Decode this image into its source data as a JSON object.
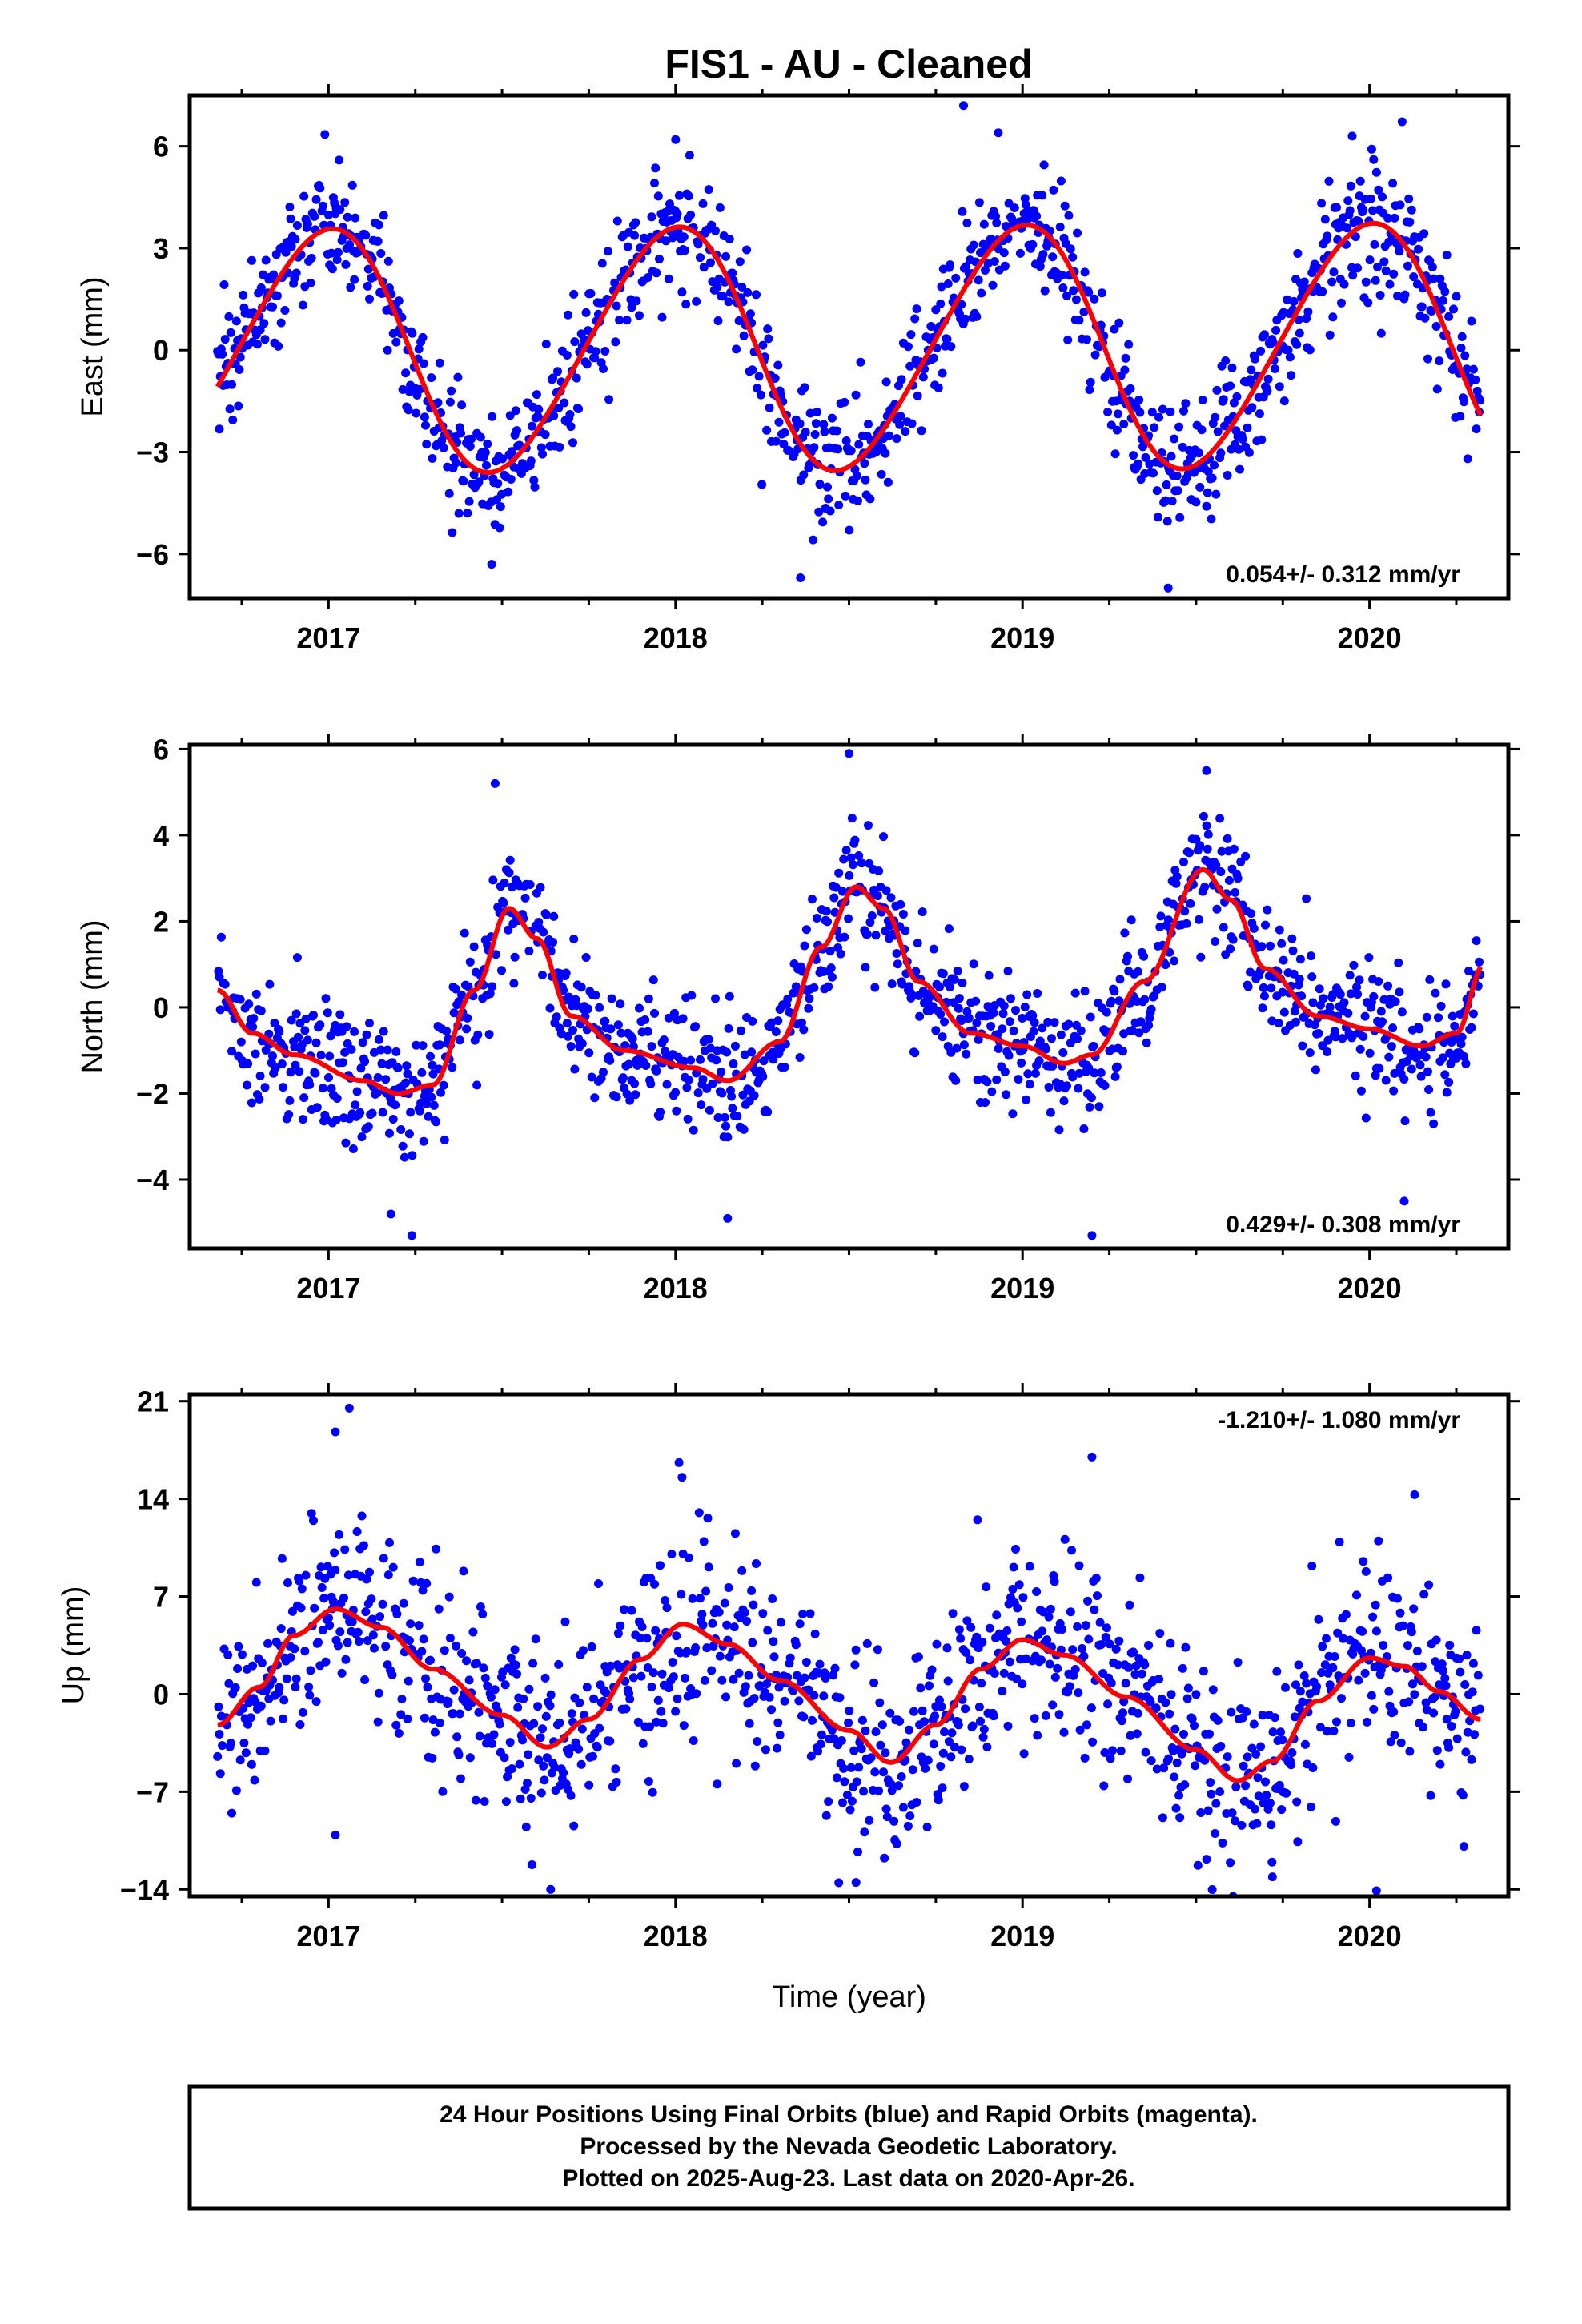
{
  "title": "FIS1  - AU - Cleaned",
  "colors": {
    "points_final": "#0000ff",
    "fit_line": "#ff0000",
    "frame": "#000000",
    "background": "#ffffff"
  },
  "footer": {
    "line1": "24 Hour Positions Using Final Orbits (blue) and Rapid Orbits (magenta).",
    "line2": "Processed by the Nevada Geodetic Laboratory.",
    "line3": "Plotted on 2025-Aug-23. Last data on 2020-Apr-26."
  },
  "chart_data": [
    {
      "type": "scatter",
      "panel": "east",
      "ylabel": "East (mm)",
      "xlabel": "",
      "xlim": [
        2016.6,
        2020.4
      ],
      "ylim": [
        -7.3,
        7.5
      ],
      "xticks": [
        2017,
        2018,
        2019,
        2020
      ],
      "yticks": [
        -6,
        -3,
        0,
        3,
        6
      ],
      "ytick_labels": [
        "−6",
        "−3",
        "0",
        "3",
        "6"
      ],
      "rate_text": "0.054+/- 0.312 mm/yr",
      "rate_position": "bottom-right",
      "fit_model": {
        "offset": -0.05,
        "trend_mm_per_yr": 0.054,
        "annual_amp": 3.55,
        "annual_peak_doy": 360,
        "semiannual_amp": 0.3,
        "semiannual_peak_doy": 40
      },
      "scatter_sigma": 0.95,
      "outliers": [
        [
          2018.83,
          7.2
        ],
        [
          2018.36,
          -6.7
        ],
        [
          2019.42,
          -7.0
        ],
        [
          2017.47,
          -6.3
        ],
        [
          2018.93,
          6.4
        ],
        [
          2018.0,
          6.2
        ],
        [
          2019.95,
          6.3
        ]
      ],
      "series": [
        {
          "name": "Final Orbits",
          "color": "#0000ff"
        }
      ]
    },
    {
      "type": "scatter",
      "panel": "north",
      "ylabel": "North (mm)",
      "xlabel": "",
      "xlim": [
        2016.6,
        2020.4
      ],
      "ylim": [
        -5.6,
        6.1
      ],
      "xticks": [
        2017,
        2018,
        2019,
        2020
      ],
      "yticks": [
        -4,
        -2,
        0,
        2,
        4,
        6
      ],
      "ytick_labels": [
        "−4",
        "−2",
        "0",
        "2",
        "4",
        "6"
      ],
      "rate_text": "0.429+/- 0.308 mm/yr",
      "rate_position": "bottom-right",
      "fit_knots": [
        [
          2016.68,
          0.4
        ],
        [
          2016.78,
          -0.6
        ],
        [
          2016.9,
          -1.1
        ],
        [
          2017.1,
          -1.7
        ],
        [
          2017.2,
          -2.0
        ],
        [
          2017.3,
          -1.8
        ],
        [
          2017.42,
          0.4
        ],
        [
          2017.52,
          2.3
        ],
        [
          2017.6,
          1.6
        ],
        [
          2017.7,
          -0.2
        ],
        [
          2017.85,
          -1.0
        ],
        [
          2018.05,
          -1.4
        ],
        [
          2018.15,
          -1.7
        ],
        [
          2018.3,
          -0.8
        ],
        [
          2018.42,
          1.4
        ],
        [
          2018.52,
          2.8
        ],
        [
          2018.6,
          2.3
        ],
        [
          2018.7,
          0.6
        ],
        [
          2018.85,
          -0.6
        ],
        [
          2019.0,
          -0.9
        ],
        [
          2019.12,
          -1.3
        ],
        [
          2019.2,
          -1.1
        ],
        [
          2019.35,
          0.6
        ],
        [
          2019.52,
          3.2
        ],
        [
          2019.6,
          2.5
        ],
        [
          2019.7,
          0.9
        ],
        [
          2019.85,
          -0.2
        ],
        [
          2020.0,
          -0.5
        ],
        [
          2020.15,
          -0.9
        ],
        [
          2020.25,
          -0.6
        ],
        [
          2020.33,
          1.0
        ]
      ],
      "scatter_sigma": 0.75,
      "outliers": [
        [
          2017.24,
          -5.3
        ],
        [
          2017.48,
          5.2
        ],
        [
          2018.5,
          5.9
        ],
        [
          2019.2,
          -5.3
        ],
        [
          2018.15,
          -4.9
        ],
        [
          2019.53,
          5.5
        ],
        [
          2020.1,
          -4.5
        ],
        [
          2017.18,
          -4.8
        ]
      ],
      "series": [
        {
          "name": "Final Orbits",
          "color": "#0000ff"
        }
      ]
    },
    {
      "type": "scatter",
      "panel": "up",
      "ylabel": "Up (mm)",
      "xlabel": "Time (year)",
      "xlim": [
        2016.6,
        2020.4
      ],
      "ylim": [
        -14.5,
        21.5
      ],
      "xticks": [
        2017,
        2018,
        2019,
        2020
      ],
      "yticks": [
        -14,
        -7,
        0,
        7,
        14,
        21
      ],
      "ytick_labels": [
        "−14",
        "−7",
        "0",
        "7",
        "14",
        "21"
      ],
      "rate_text": "-1.210+/- 1.080 mm/yr",
      "rate_position": "top-right",
      "fit_knots": [
        [
          2016.68,
          -2.2
        ],
        [
          2016.8,
          0.5
        ],
        [
          2016.9,
          4.2
        ],
        [
          2017.02,
          6.1
        ],
        [
          2017.15,
          4.8
        ],
        [
          2017.3,
          1.8
        ],
        [
          2017.5,
          -1.5
        ],
        [
          2017.63,
          -3.8
        ],
        [
          2017.75,
          -1.8
        ],
        [
          2017.9,
          2.5
        ],
        [
          2018.02,
          5.0
        ],
        [
          2018.15,
          3.6
        ],
        [
          2018.3,
          1.0
        ],
        [
          2018.5,
          -2.6
        ],
        [
          2018.62,
          -4.9
        ],
        [
          2018.75,
          -2.2
        ],
        [
          2018.88,
          1.8
        ],
        [
          2019.0,
          3.9
        ],
        [
          2019.12,
          2.8
        ],
        [
          2019.3,
          -0.2
        ],
        [
          2019.5,
          -4.0
        ],
        [
          2019.62,
          -6.2
        ],
        [
          2019.72,
          -4.8
        ],
        [
          2019.85,
          -0.5
        ],
        [
          2020.0,
          2.6
        ],
        [
          2020.1,
          2.0
        ],
        [
          2020.2,
          0.2
        ],
        [
          2020.32,
          -1.8
        ]
      ],
      "scatter_sigma": 3.5,
      "outliers": [
        [
          2017.06,
          20.5
        ],
        [
          2017.02,
          18.8
        ],
        [
          2018.01,
          16.6
        ],
        [
          2019.2,
          17.0
        ],
        [
          2020.13,
          14.3
        ],
        [
          2017.64,
          -14.0
        ],
        [
          2018.52,
          -13.5
        ],
        [
          2020.02,
          -14.1
        ],
        [
          2017.02,
          -10.1
        ],
        [
          2019.72,
          -13.1
        ]
      ],
      "series": [
        {
          "name": "Final Orbits",
          "color": "#0000ff"
        }
      ]
    }
  ]
}
